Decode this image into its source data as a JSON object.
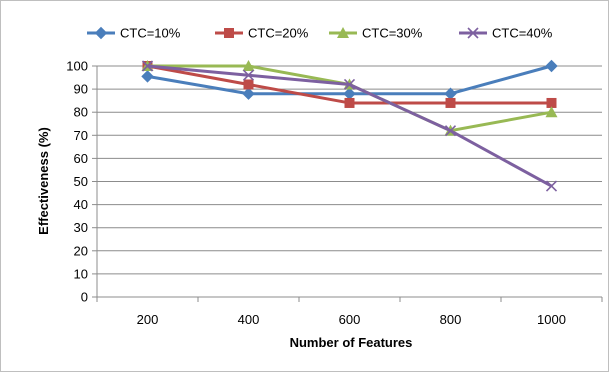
{
  "chart_data": {
    "type": "line",
    "categories": [
      "200",
      "400",
      "600",
      "800",
      "1000"
    ],
    "xlabel": "Number of Features",
    "ylabel": "Effectiveness (%)",
    "ylim": [
      0,
      100
    ],
    "yticks": [
      0,
      10,
      20,
      30,
      40,
      50,
      60,
      70,
      80,
      90,
      100
    ],
    "grid": "horizontal",
    "legend_position": "top",
    "series": [
      {
        "name": "CTC=10%",
        "color": "#4a7ebb",
        "marker": "diamond",
        "values": [
          95.5,
          88,
          88,
          88,
          100
        ]
      },
      {
        "name": "CTC=20%",
        "color": "#be4b48",
        "marker": "square",
        "values": [
          100,
          92,
          84,
          84,
          84
        ]
      },
      {
        "name": "CTC=30%",
        "color": "#98b954",
        "marker": "triangle",
        "values": [
          100,
          100,
          92,
          72,
          80
        ]
      },
      {
        "name": "CTC=40%",
        "color": "#7d60a0",
        "marker": "x",
        "values": [
          100,
          96,
          92,
          72,
          48
        ]
      }
    ]
  }
}
